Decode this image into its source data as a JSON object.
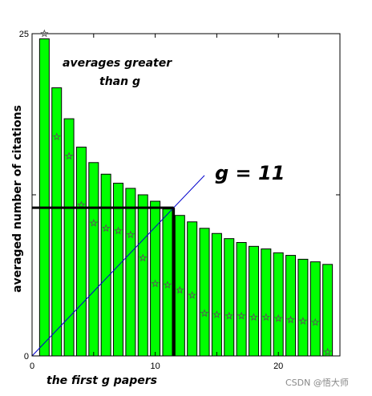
{
  "chart_data": {
    "type": "bar",
    "x": [
      1,
      2,
      3,
      4,
      5,
      6,
      7,
      8,
      9,
      10,
      11,
      12,
      13,
      14,
      15,
      16,
      17,
      18,
      19,
      20,
      21,
      22,
      23,
      24
    ],
    "series": [
      {
        "values": [
          24.6,
          20.8,
          18.4,
          16.2,
          15.0,
          14.1,
          13.4,
          13.0,
          12.5,
          12.0,
          11.4,
          10.9,
          10.4,
          9.9,
          9.5,
          9.1,
          8.8,
          8.5,
          8.3,
          8.0,
          7.8,
          7.5,
          7.3,
          7.1
        ]
      },
      {
        "values": [
          25.0,
          17.0,
          15.5,
          11.7,
          10.3,
          9.9,
          9.7,
          9.4,
          7.6,
          5.6,
          5.5,
          5.1,
          4.7,
          3.3,
          3.2,
          3.1,
          3.1,
          3.0,
          3.0,
          2.9,
          2.8,
          2.7,
          2.6,
          0.3
        ]
      }
    ],
    "xlim": [
      0,
      25
    ],
    "ylim": [
      0,
      25
    ],
    "xticks": [
      "0",
      "10",
      "20"
    ],
    "yticks": [
      "0",
      "25"
    ],
    "ylabel": "averaged number of citations",
    "xlabel": "",
    "g_line": {
      "x": 11.5,
      "y": 11.5
    },
    "diagonal": {
      "from": [
        0,
        0
      ],
      "to": [
        14,
        14
      ]
    },
    "colors": {
      "bar_fill": "#00ff00",
      "bar_stroke": "#000000",
      "marker": "#555555",
      "background": "#ffffff"
    }
  },
  "annotations": {
    "averages_line1": "averages greater",
    "averages_line2": "than  g",
    "g_value": "g = 11",
    "first_g": "the first g papers"
  },
  "watermark": "CSDN @悟大师"
}
